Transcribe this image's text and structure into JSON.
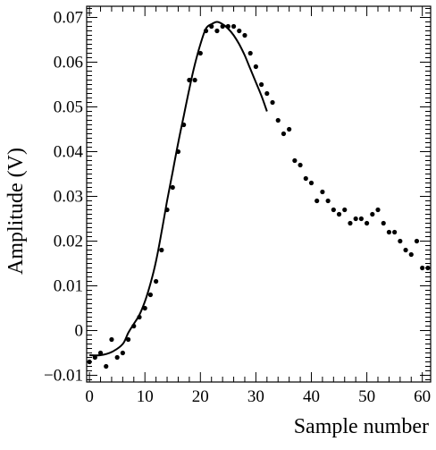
{
  "chart_data": {
    "type": "scatter",
    "title": "",
    "xlabel": "Sample number",
    "ylabel": "Amplitude (V)",
    "xlim": [
      -0.5,
      61.5
    ],
    "ylim": [
      -0.0115,
      0.0725
    ],
    "x_ticks": [
      0,
      10,
      20,
      30,
      40,
      50,
      60
    ],
    "x_tick_labels": [
      "0",
      "10",
      "20",
      "30",
      "40",
      "50",
      "60"
    ],
    "y_ticks": [
      -0.01,
      0,
      0.01,
      0.02,
      0.03,
      0.04,
      0.05,
      0.06,
      0.07
    ],
    "y_tick_labels": [
      "−0.01",
      "0",
      "0.01",
      "0.02",
      "0.03",
      "0.04",
      "0.05",
      "0.06",
      "0.07"
    ],
    "grid": false,
    "colors": {
      "points": "#000000",
      "fit": "#000000",
      "axes": "#000000"
    },
    "series": [
      {
        "kind": "points",
        "x": [
          0,
          1,
          2,
          3,
          4,
          5,
          6,
          7,
          8,
          9,
          10,
          11,
          12,
          13,
          14,
          15,
          16,
          17,
          18,
          19,
          20,
          21,
          22,
          23,
          24,
          25,
          26,
          27,
          28,
          29,
          30,
          31,
          32,
          33,
          34,
          35,
          36,
          37,
          38,
          39,
          40,
          41,
          42,
          43,
          44,
          45,
          46,
          47,
          48,
          49,
          50,
          51,
          52,
          53,
          54,
          55,
          56,
          57,
          58,
          59,
          60,
          61
        ],
        "y": [
          -0.007,
          -0.006,
          -0.005,
          -0.008,
          -0.002,
          -0.006,
          -0.005,
          -0.002,
          0.001,
          0.003,
          0.005,
          0.008,
          0.011,
          0.018,
          0.027,
          0.032,
          0.04,
          0.046,
          0.056,
          0.056,
          0.062,
          0.067,
          0.068,
          0.067,
          0.068,
          0.068,
          0.068,
          0.067,
          0.066,
          0.062,
          0.059,
          0.055,
          0.053,
          0.051,
          0.047,
          0.044,
          0.045,
          0.038,
          0.037,
          0.034,
          0.033,
          0.029,
          0.031,
          0.029,
          0.027,
          0.026,
          0.027,
          0.024,
          0.025,
          0.025,
          0.024,
          0.026,
          0.027,
          0.024,
          0.022,
          0.022,
          0.02,
          0.018,
          0.017,
          0.02,
          0.014,
          0.014
        ]
      },
      {
        "kind": "fit",
        "x": [
          0,
          2,
          4,
          6,
          7,
          8,
          9,
          10,
          11,
          12,
          13,
          14,
          15,
          16,
          17,
          18,
          19,
          20,
          21,
          22,
          23,
          24,
          25,
          26,
          27,
          28,
          29,
          30,
          31,
          32
        ],
        "y": [
          -0.0055,
          -0.0055,
          -0.0048,
          -0.003,
          -0.0005,
          0.0015,
          0.0035,
          0.0065,
          0.0105,
          0.0155,
          0.022,
          0.029,
          0.0355,
          0.042,
          0.048,
          0.054,
          0.0595,
          0.064,
          0.0675,
          0.0685,
          0.069,
          0.0685,
          0.0675,
          0.066,
          0.064,
          0.0615,
          0.0585,
          0.0555,
          0.0525,
          0.049
        ]
      }
    ]
  }
}
